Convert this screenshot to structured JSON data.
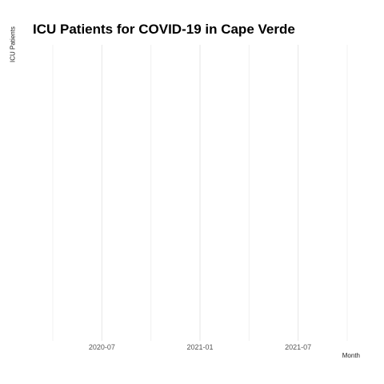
{
  "chart_data": {
    "type": "line",
    "title": "ICU Patients for COVID-19 in Cape Verde",
    "xlabel": "Month",
    "ylabel": "ICU Patients",
    "x_ticks": [
      "2020-07",
      "2021-01",
      "2021-07"
    ],
    "xlim": [
      "2020-04",
      "2021-10"
    ],
    "grid": true,
    "series": []
  }
}
